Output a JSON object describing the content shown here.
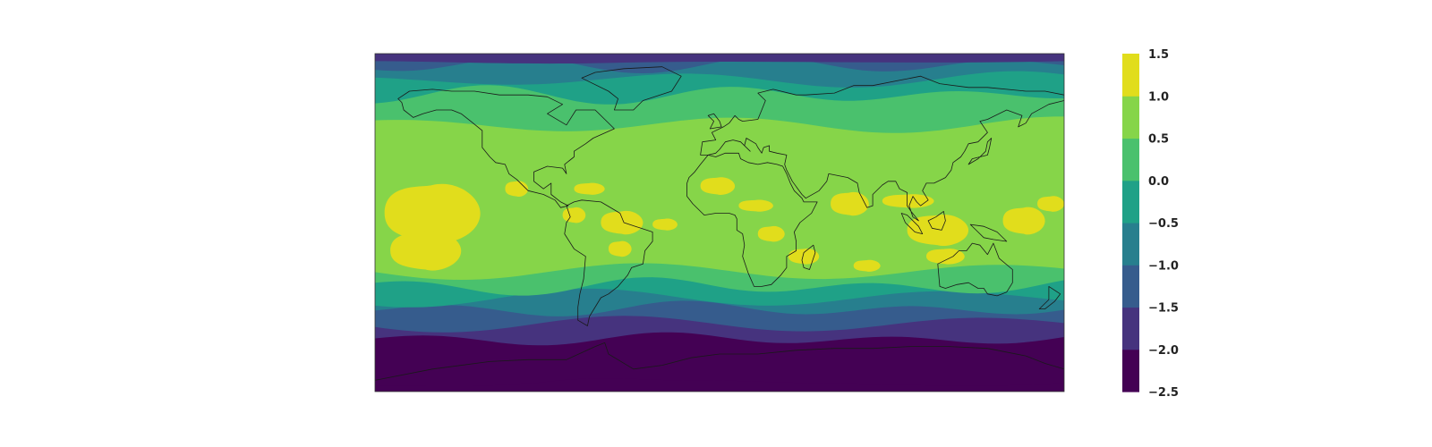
{
  "map": {
    "projection": "equirectangular",
    "extent": {
      "lon": [
        -180,
        180
      ],
      "lat": [
        -90,
        90
      ]
    },
    "coastlines": true,
    "grid": false,
    "fill_type": "filled-contour"
  },
  "colorbar": {
    "orientation": "vertical",
    "placement": "right",
    "levels": [
      -2.5,
      -2.0,
      -1.5,
      -1.0,
      -0.5,
      0.0,
      0.5,
      1.0,
      1.5
    ],
    "tick_labels": [
      "−2.5",
      "−2.0",
      "−1.5",
      "−1.0",
      "−0.5",
      "0.0",
      "0.5",
      "1.0",
      "1.5"
    ],
    "colors": [
      "#440154",
      "#46337e",
      "#365c8d",
      "#277f8e",
      "#1fa187",
      "#4ac16d",
      "#86d549",
      "#e1dd1c"
    ]
  }
}
